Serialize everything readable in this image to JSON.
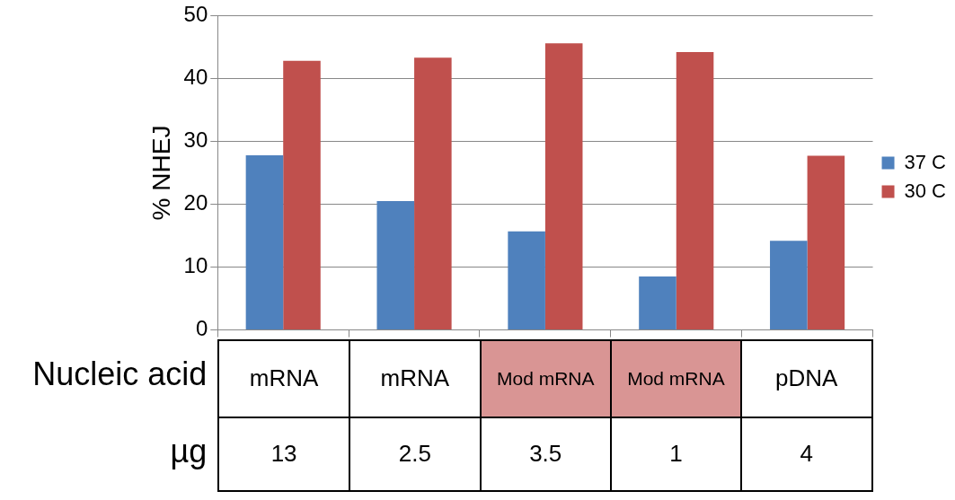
{
  "chart_data": {
    "type": "bar",
    "ylabel": "% NHEJ",
    "categories": [
      "mRNA",
      "mRNA",
      "Mod mRNA",
      "Mod mRNA",
      "pDNA"
    ],
    "series": [
      {
        "name": "37 C",
        "color": "#4f81bd",
        "values": [
          27.8,
          20.5,
          15.7,
          8.5,
          14.2
        ]
      },
      {
        "name": "30 C",
        "color": "#c0504d",
        "values": [
          42.8,
          43.3,
          45.6,
          44.2,
          27.7
        ]
      }
    ],
    "ylim": [
      0,
      50
    ],
    "yticks": [
      0,
      10,
      20,
      30,
      40,
      50
    ],
    "grid": "y",
    "legend": "right",
    "annotations": [
      "Nucleic acid",
      "µg",
      "13",
      "2.5",
      "3.5",
      "1",
      "4"
    ]
  }
}
